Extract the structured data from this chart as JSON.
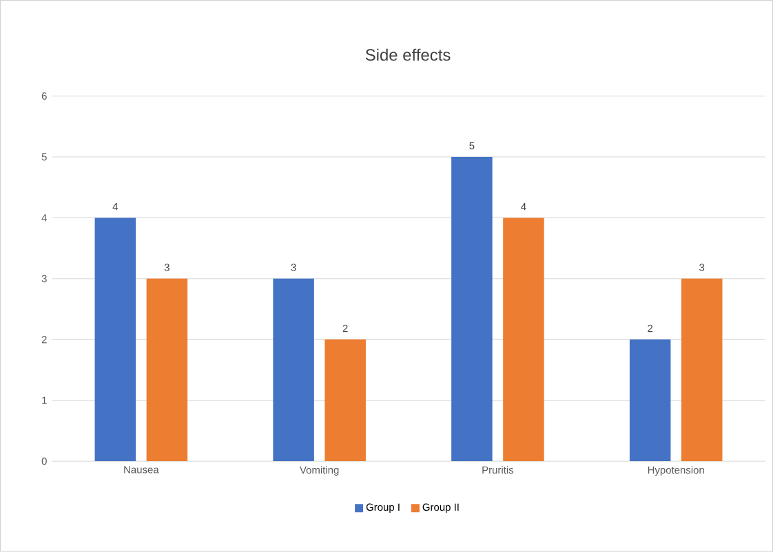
{
  "chart_data": {
    "type": "bar",
    "title": "Side effects",
    "categories": [
      "Nausea",
      "Vomiting",
      "Pruritis",
      "Hypotension"
    ],
    "series": [
      {
        "name": "Group I",
        "color": "#4472c4",
        "values": [
          4,
          3,
          5,
          2
        ]
      },
      {
        "name": "Group II",
        "color": "#ed7d31",
        "values": [
          3,
          2,
          4,
          3
        ]
      }
    ],
    "ylim": [
      0,
      6
    ],
    "yticks": [
      0,
      1,
      2,
      3,
      4,
      5,
      6
    ],
    "grid": "y",
    "legend": "bottom",
    "data_labels": true
  }
}
